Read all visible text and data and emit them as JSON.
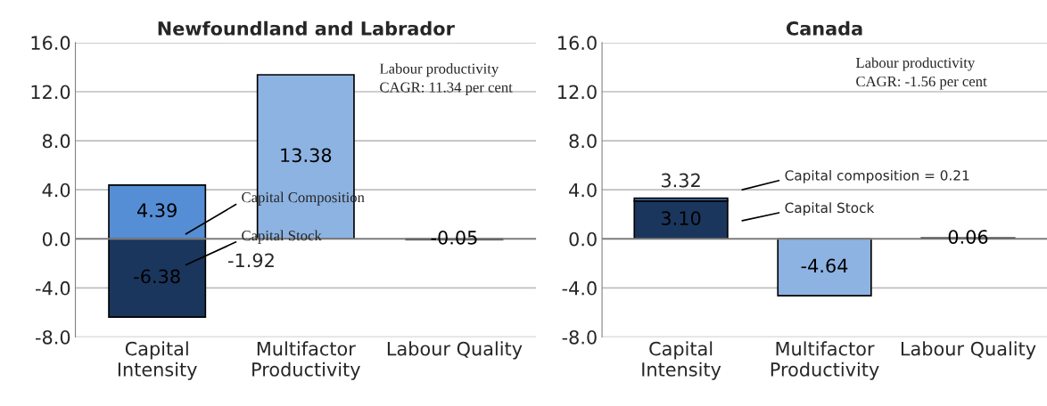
{
  "chart_data": [
    {
      "type": "bar",
      "title": "Newfoundland and Labrador",
      "stacked": true,
      "categories": [
        "Capital Intensity",
        "Multifactor Productivity",
        "Labour Quality"
      ],
      "series": [
        {
          "color": "#1b365d",
          "values": [
            -6.38,
            null,
            null
          ],
          "value_labels": [
            "-6.38",
            null,
            null
          ]
        },
        {
          "color": "#558ed5",
          "values": [
            4.39,
            null,
            null
          ],
          "value_labels": [
            "4.39",
            null,
            null
          ]
        },
        {
          "color": "#8db3e2",
          "values": [
            null,
            13.38,
            -0.05
          ],
          "value_labels": [
            null,
            "13.38",
            "-0.05"
          ]
        }
      ],
      "ylim": [
        -8,
        16
      ],
      "yticks": [
        {
          "value": -8,
          "label": "-8.0"
        },
        {
          "value": -4,
          "label": "-4.0"
        },
        {
          "value": 0,
          "label": "0.0"
        },
        {
          "value": 4,
          "label": "4.0"
        },
        {
          "value": 8,
          "label": "8.0"
        },
        {
          "value": 12,
          "label": "12.0"
        },
        {
          "value": 16,
          "label": "16.0"
        }
      ],
      "grid": "y",
      "legend": false,
      "annotations": [
        "Capital Composition",
        "Capital Stock",
        "Labour productivity\nCAGR: 11.34 per cent",
        "-1.92"
      ]
    },
    {
      "type": "bar",
      "title": "Canada",
      "stacked": true,
      "categories": [
        "Capital Intensity",
        "Multifactor Productivity",
        "Labour Quality"
      ],
      "series": [
        {
          "color": "#1b365d",
          "values": [
            3.1,
            null,
            null
          ],
          "value_labels": [
            "3.10",
            null,
            null
          ]
        },
        {
          "color": "#558ed5",
          "values": [
            0.21,
            null,
            null
          ],
          "value_labels": [
            null,
            null,
            null
          ]
        },
        {
          "color": "#8db3e2",
          "values": [
            null,
            -4.64,
            0.06
          ],
          "value_labels": [
            null,
            "-4.64",
            "0.06"
          ]
        }
      ],
      "totals": [
        "3.32",
        null,
        null
      ],
      "ylim": [
        -8,
        16
      ],
      "yticks": [
        {
          "value": -8,
          "label": "-8.0"
        },
        {
          "value": -4,
          "label": "-4.0"
        },
        {
          "value": 0,
          "label": "0.0"
        },
        {
          "value": 4,
          "label": "4.0"
        },
        {
          "value": 8,
          "label": "8.0"
        },
        {
          "value": 12,
          "label": "12.0"
        },
        {
          "value": 16,
          "label": "16.0"
        }
      ],
      "grid": "y",
      "legend": false,
      "annotations": [
        "Capital composition = 0.21",
        "Capital Stock",
        "Labour productivity\nCAGR: -1.56 per cent"
      ]
    }
  ]
}
